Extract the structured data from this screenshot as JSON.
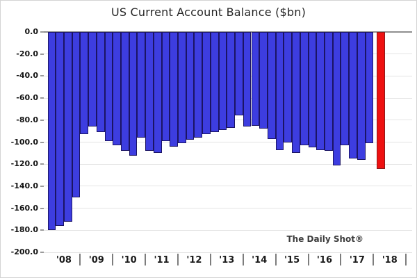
{
  "title": "US Current Account Balance ($bn)",
  "watermark": "The Daily Shot®",
  "chart_data": {
    "type": "bar",
    "title": "US Current Account Balance ($bn)",
    "ylabel": "",
    "xlabel": "",
    "unit": "$bn",
    "frequency": "quarterly",
    "bars_per_year": 4,
    "x_tick_labels": [
      "'08",
      "'09",
      "'10",
      "'11",
      "'12",
      "'13",
      "'14",
      "'15",
      "'16",
      "'17",
      "'18"
    ],
    "values": [
      -180,
      -176,
      -172,
      -150,
      -93,
      -86,
      -91,
      -99,
      -103,
      -108,
      -112,
      -96,
      -108,
      -110,
      -99,
      -104,
      -101,
      -98,
      -96,
      -93,
      -91,
      -89,
      -87,
      -76,
      -86,
      -85,
      -88,
      -97,
      -107,
      -100,
      -110,
      -103,
      -105,
      -107,
      -108,
      -121,
      -103,
      -115,
      -116,
      -101,
      -124
    ],
    "highlight_index": 40,
    "ylim": [
      -200,
      0
    ],
    "y_tick_step": 20,
    "y_tick_labels": [
      "0.0",
      "-20.0",
      "-40.0",
      "-60.0",
      "-80.0",
      "-100.0",
      "-120.0",
      "-140.0",
      "-160.0",
      "-180.0",
      "-200.0"
    ],
    "grid": "horizontal",
    "legend": "none",
    "colors": {
      "bar_fill": "#3d3de0",
      "bar_border": "#1b1464",
      "highlight_fill": "#ee1111",
      "highlight_border": "#8b1a1a",
      "zero_line": "#8f8f8f",
      "gridline": "#e4e4e4"
    }
  }
}
